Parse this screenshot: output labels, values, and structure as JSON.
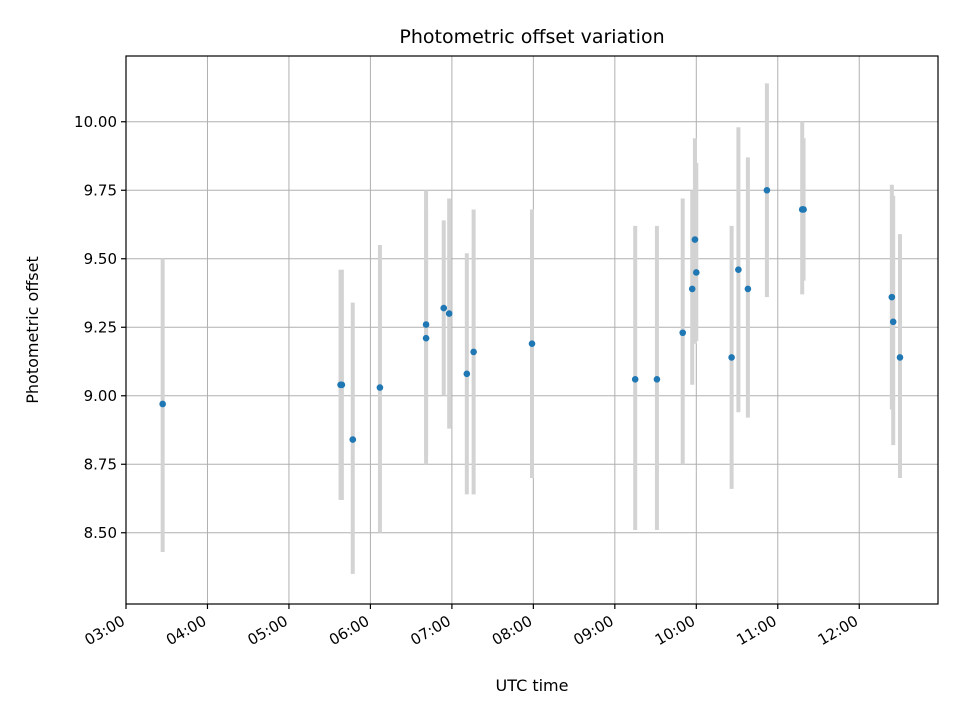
{
  "chart_data": {
    "type": "scatter",
    "title": "Photometric offset variation",
    "xlabel": "UTC time",
    "ylabel": "Photometric offset",
    "x_ticks": [
      "03:00",
      "04:00",
      "05:00",
      "06:00",
      "07:00",
      "08:00",
      "09:00",
      "10:00",
      "11:00",
      "12:00"
    ],
    "y_ticks": [
      "8.50",
      "8.75",
      "9.00",
      "9.25",
      "9.50",
      "9.75",
      "10.00"
    ],
    "xlim": [
      "03:00",
      "12:58"
    ],
    "ylim": [
      8.24,
      10.24
    ],
    "grid": true,
    "colors": {
      "point": "#1f77b4",
      "errorbar": "#d3d3d3",
      "grid": "#b0b0b0"
    },
    "points": [
      {
        "x": "03:27",
        "y": 8.97,
        "low": 8.43,
        "high": 9.5
      },
      {
        "x": "05:38",
        "y": 9.04,
        "low": 8.62,
        "high": 9.46
      },
      {
        "x": "05:39",
        "y": 9.04,
        "low": 8.62,
        "high": 9.46
      },
      {
        "x": "05:47",
        "y": 8.84,
        "low": 8.35,
        "high": 9.34
      },
      {
        "x": "06:07",
        "y": 9.03,
        "low": 8.5,
        "high": 9.55
      },
      {
        "x": "06:41",
        "y": 9.26,
        "low": 8.78,
        "high": 9.75
      },
      {
        "x": "06:41",
        "y": 9.21,
        "low": 8.75,
        "high": 9.68
      },
      {
        "x": "06:54",
        "y": 9.32,
        "low": 9.0,
        "high": 9.64
      },
      {
        "x": "06:58",
        "y": 9.3,
        "low": 8.88,
        "high": 9.72
      },
      {
        "x": "07:11",
        "y": 9.08,
        "low": 8.64,
        "high": 9.52
      },
      {
        "x": "07:16",
        "y": 9.16,
        "low": 8.64,
        "high": 9.68
      },
      {
        "x": "07:59",
        "y": 9.19,
        "low": 8.7,
        "high": 9.68
      },
      {
        "x": "09:15",
        "y": 9.06,
        "low": 8.51,
        "high": 9.62
      },
      {
        "x": "09:31",
        "y": 9.06,
        "low": 8.51,
        "high": 9.62
      },
      {
        "x": "09:50",
        "y": 9.23,
        "low": 8.75,
        "high": 9.72
      },
      {
        "x": "09:57",
        "y": 9.39,
        "low": 9.04,
        "high": 9.75
      },
      {
        "x": "09:59",
        "y": 9.57,
        "low": 9.19,
        "high": 9.94
      },
      {
        "x": "10:00",
        "y": 9.45,
        "low": 9.2,
        "high": 9.85
      },
      {
        "x": "10:26",
        "y": 9.14,
        "low": 8.66,
        "high": 9.62
      },
      {
        "x": "10:31",
        "y": 9.46,
        "low": 8.94,
        "high": 9.98
      },
      {
        "x": "10:38",
        "y": 9.39,
        "low": 8.92,
        "high": 9.87
      },
      {
        "x": "10:52",
        "y": 9.75,
        "low": 9.36,
        "high": 10.14
      },
      {
        "x": "11:18",
        "y": 9.68,
        "low": 9.37,
        "high": 10.0
      },
      {
        "x": "11:19",
        "y": 9.68,
        "low": 9.42,
        "high": 9.94
      },
      {
        "x": "12:24",
        "y": 9.36,
        "low": 8.95,
        "high": 9.77
      },
      {
        "x": "12:25",
        "y": 9.27,
        "low": 8.82,
        "high": 9.73
      },
      {
        "x": "12:30",
        "y": 9.14,
        "low": 8.7,
        "high": 9.59
      }
    ]
  }
}
